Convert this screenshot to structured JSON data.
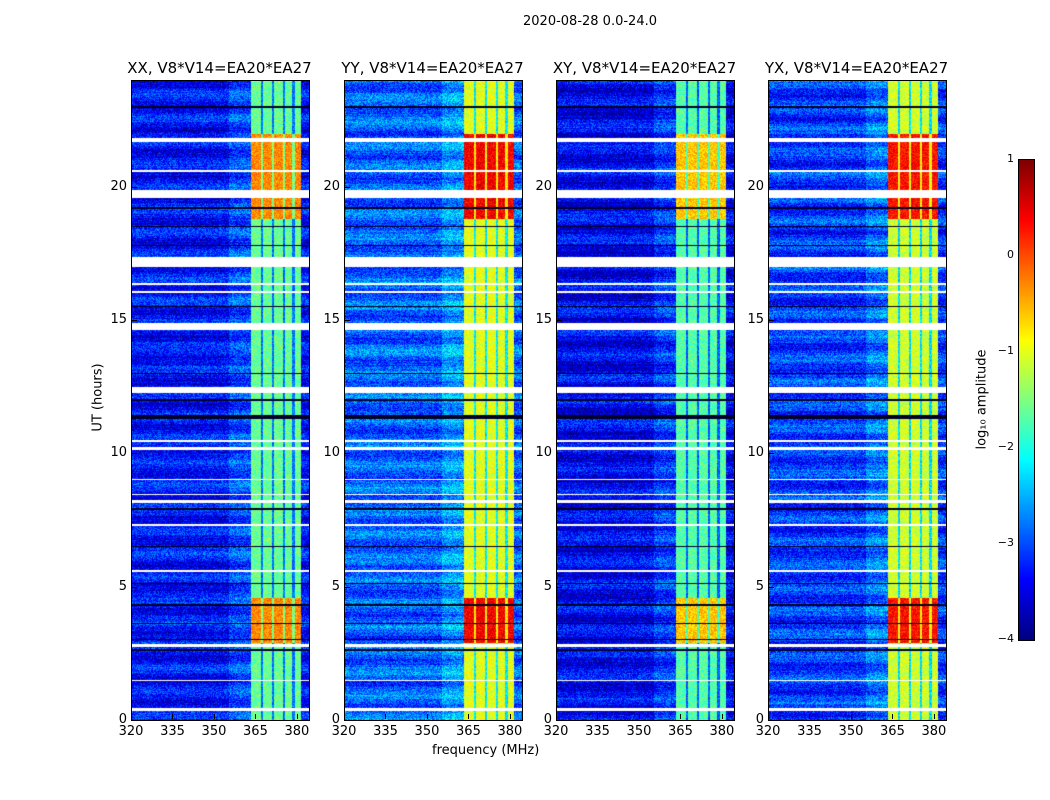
{
  "chart_data": {
    "type": "heatmap",
    "title": "2020-08-28 0.0-24.0",
    "xlabel": "frequency (MHz)",
    "ylabel": "UT (hours)",
    "xlim": [
      320,
      384
    ],
    "ylim": [
      0,
      24
    ],
    "xticks": [
      "320",
      "335",
      "350",
      "365",
      "380"
    ],
    "yticks": [
      "0",
      "5",
      "10",
      "15",
      "20"
    ],
    "panels": [
      {
        "title": "XX, V8*V14=EA20*EA27",
        "band_level": -1.6,
        "strong_level": -0.3,
        "bg_level": -3.3
      },
      {
        "title": "YY, V8*V14=EA20*EA27",
        "band_level": -1.0,
        "strong_level": 0.4,
        "bg_level": -2.9
      },
      {
        "title": "XY, V8*V14=EA20*EA27",
        "band_level": -1.7,
        "strong_level": -0.6,
        "bg_level": -3.4
      },
      {
        "title": "YX, V8*V14=EA20*EA27",
        "band_level": -1.1,
        "strong_level": 0.3,
        "bg_level": -3.1
      }
    ],
    "rfi_band_mhz": [
      363,
      381
    ],
    "rfi_gaps_mhz": [
      367,
      371,
      375,
      378.5
    ],
    "flagged_hours": [
      [
        0.35,
        0.45
      ],
      [
        1.45,
        1.52
      ],
      [
        2.75,
        2.85
      ],
      [
        5.55,
        5.65
      ],
      [
        7.3,
        7.35
      ],
      [
        8.15,
        8.25
      ],
      [
        8.45,
        8.5
      ],
      [
        9.0,
        9.05
      ],
      [
        10.15,
        10.25
      ],
      [
        10.45,
        10.5
      ],
      [
        12.3,
        12.5
      ],
      [
        14.65,
        14.9
      ],
      [
        16.05,
        16.1
      ],
      [
        16.35,
        16.4
      ],
      [
        17.0,
        17.4
      ],
      [
        19.6,
        19.9
      ],
      [
        20.6,
        20.65
      ],
      [
        21.7,
        21.85
      ]
    ],
    "dropout_hours": [
      [
        2.6,
        2.65
      ],
      [
        3.0,
        3.05
      ],
      [
        3.6,
        3.65
      ],
      [
        4.3,
        4.35
      ],
      [
        5.1,
        5.15
      ],
      [
        6.5,
        6.55
      ],
      [
        7.9,
        7.95
      ],
      [
        11.3,
        11.45
      ],
      [
        12.0,
        12.05
      ],
      [
        13.0,
        13.05
      ],
      [
        15.5,
        15.55
      ],
      [
        17.8,
        17.85
      ],
      [
        18.5,
        18.55
      ],
      [
        19.2,
        19.25
      ],
      [
        23.0,
        23.05
      ]
    ],
    "strong_hours": [
      [
        2.9,
        4.6
      ],
      [
        18.8,
        22.0
      ]
    ],
    "colorbar": {
      "label": "log₁₀ amplitude",
      "range": [
        -4,
        1
      ],
      "ticks": [
        "1",
        "0",
        "−1",
        "−2",
        "−3",
        "−4"
      ],
      "colormap": "jet"
    }
  }
}
